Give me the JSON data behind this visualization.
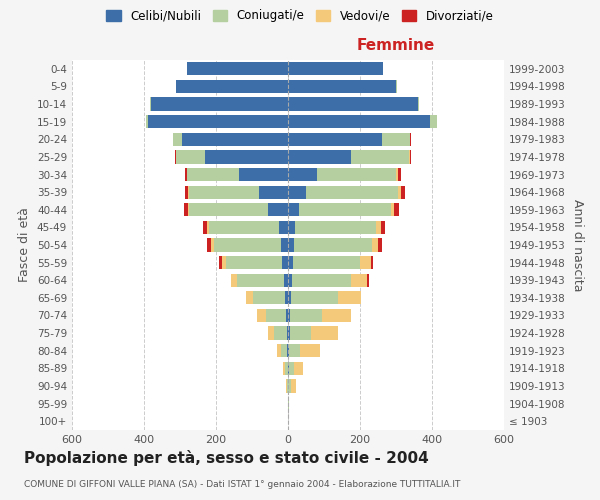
{
  "age_groups": [
    "100+",
    "95-99",
    "90-94",
    "85-89",
    "80-84",
    "75-79",
    "70-74",
    "65-69",
    "60-64",
    "55-59",
    "50-54",
    "45-49",
    "40-44",
    "35-39",
    "30-34",
    "25-29",
    "20-24",
    "15-19",
    "10-14",
    "5-9",
    "0-4"
  ],
  "birth_years": [
    "≤ 1903",
    "1904-1908",
    "1909-1913",
    "1914-1918",
    "1919-1923",
    "1924-1928",
    "1929-1933",
    "1934-1938",
    "1939-1943",
    "1944-1948",
    "1949-1953",
    "1954-1958",
    "1959-1963",
    "1964-1968",
    "1969-1973",
    "1974-1978",
    "1979-1983",
    "1984-1988",
    "1989-1993",
    "1994-1998",
    "1999-2003"
  ],
  "males": {
    "celibe": [
      0,
      0,
      0,
      0,
      2,
      3,
      5,
      8,
      12,
      18,
      20,
      25,
      55,
      80,
      135,
      230,
      295,
      390,
      380,
      310,
      280
    ],
    "coniugato": [
      0,
      0,
      3,
      8,
      18,
      35,
      55,
      90,
      130,
      155,
      185,
      195,
      220,
      195,
      145,
      80,
      25,
      5,
      2,
      0,
      0
    ],
    "vedovo": [
      0,
      0,
      2,
      5,
      10,
      18,
      25,
      20,
      15,
      10,
      8,
      5,
      3,
      2,
      0,
      0,
      0,
      0,
      0,
      0,
      0
    ],
    "divorziato": [
      0,
      0,
      0,
      0,
      0,
      0,
      0,
      0,
      0,
      10,
      12,
      10,
      10,
      10,
      5,
      3,
      0,
      0,
      0,
      0,
      0
    ]
  },
  "females": {
    "nubile": [
      0,
      0,
      0,
      2,
      3,
      5,
      5,
      8,
      10,
      15,
      18,
      20,
      30,
      50,
      80,
      175,
      260,
      395,
      360,
      300,
      265
    ],
    "coniugata": [
      0,
      2,
      8,
      15,
      30,
      60,
      90,
      130,
      165,
      185,
      215,
      225,
      255,
      255,
      220,
      160,
      80,
      20,
      5,
      2,
      0
    ],
    "vedova": [
      0,
      2,
      15,
      25,
      55,
      75,
      80,
      65,
      45,
      30,
      18,
      12,
      10,
      8,
      5,
      3,
      0,
      0,
      0,
      0,
      0
    ],
    "divorziata": [
      0,
      0,
      0,
      0,
      0,
      0,
      0,
      0,
      5,
      5,
      10,
      12,
      12,
      12,
      8,
      5,
      2,
      0,
      0,
      0,
      0
    ]
  },
  "colors": {
    "single": "#3d6ea8",
    "married": "#b5cfa0",
    "widowed": "#f5c97a",
    "divorced": "#cc2222"
  },
  "legend_labels": [
    "Celibi/Nubili",
    "Coniugati/e",
    "Vedovi/e",
    "Divorziati/e"
  ],
  "title": "Popolazione per età, sesso e stato civile - 2004",
  "subtitle": "COMUNE DI GIFFONI VALLE PIANA (SA) - Dati ISTAT 1° gennaio 2004 - Elaborazione TUTTITALIA.IT",
  "xlabel_right": "Femmine",
  "ylabel_left": "Fasce di età",
  "ylabel_right": "Anni di nascita",
  "xlim": 600,
  "bg_color": "#f5f5f5",
  "plot_bg_color": "#ffffff"
}
